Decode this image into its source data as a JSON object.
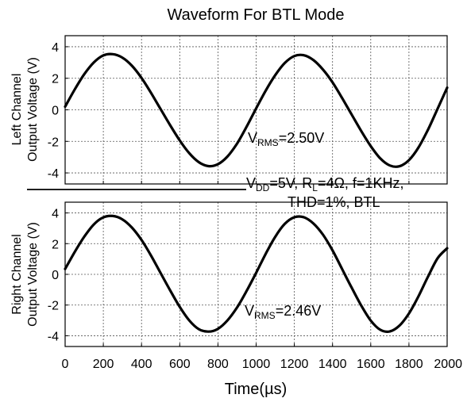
{
  "chart_data": {
    "type": "line",
    "title": "Waveform For BTL Mode",
    "xlabel": "Time(µs)",
    "xlim": [
      0,
      2000
    ],
    "x_ticks": [
      "0",
      "200",
      "400",
      "600",
      "800",
      "1000",
      "1200",
      "1400",
      "1600",
      "1800",
      "2000"
    ],
    "grid": true,
    "condition_text": {
      "line1": {
        "v": "V",
        "dd": "DD",
        "mid": "=5V, R",
        "l": "L",
        "rest": "=4Ω, f=1KHz,"
      },
      "line2": "THD=1%, BTL"
    },
    "panels": [
      {
        "ylabel_line1": "Left Channel",
        "ylabel_line2": "Output Voltage (V)",
        "ylim": [
          -4.7,
          4.7
        ],
        "y_ticks": [
          "4",
          "2",
          "0",
          "-2",
          "-4"
        ],
        "annotation": {
          "v": "V",
          "sub": "RMS",
          "value": "=2.50V"
        },
        "series": [
          {
            "x": [
              0,
              50,
              100,
              150,
              200,
              250,
              300,
              350,
              400,
              450,
              500,
              550,
              600,
              650,
              700,
              750,
              800,
              850,
              900,
              950,
              1000,
              1050,
              1100,
              1150,
              1200,
              1250,
              1300,
              1350,
              1400,
              1450,
              1500,
              1550,
              1600,
              1650,
              1700,
              1750,
              1800,
              1850,
              1900,
              1950,
              2000
            ],
            "values": [
              0.2,
              1.28,
              2.25,
              3.0,
              3.45,
              3.53,
              3.31,
              2.79,
              2.02,
              1.07,
              0.04,
              -0.98,
              -1.94,
              -2.75,
              -3.32,
              -3.57,
              -3.45,
              -2.96,
              -2.14,
              -1.07,
              0.09,
              1.21,
              2.2,
              2.97,
              3.41,
              3.46,
              3.15,
              2.55,
              1.74,
              0.75,
              -0.3,
              -1.34,
              -2.3,
              -3.08,
              -3.53,
              -3.58,
              -3.19,
              -2.39,
              -1.25,
              0.07,
              1.4
            ]
          }
        ]
      },
      {
        "ylabel_line1": "Right Channel",
        "ylabel_line2": "Output Voltage (V)",
        "ylim": [
          -4.7,
          4.7
        ],
        "y_ticks": [
          "4",
          "2",
          "0",
          "-2",
          "-4"
        ],
        "annotation": {
          "v": "V",
          "sub": "RMS",
          "value": "=2.46V"
        },
        "series": [
          {
            "x": [
              0,
              50,
              100,
              150,
              200,
              250,
              300,
              350,
              400,
              450,
              500,
              550,
              600,
              650,
              700,
              750,
              800,
              850,
              900,
              950,
              1000,
              1050,
              1100,
              1150,
              1200,
              1250,
              1300,
              1350,
              1400,
              1450,
              1500,
              1550,
              1600,
              1650,
              1700,
              1750,
              1800,
              1850,
              1900,
              1950,
              2000
            ],
            "values": [
              0.35,
              1.45,
              2.45,
              3.25,
              3.71,
              3.8,
              3.58,
              3.04,
              2.24,
              1.22,
              0.08,
              -1.05,
              -2.12,
              -3.0,
              -3.57,
              -3.73,
              -3.55,
              -3.0,
              -2.16,
              -1.08,
              0.1,
              1.33,
              2.45,
              3.29,
              3.72,
              3.72,
              3.31,
              2.58,
              1.56,
              0.35,
              -0.87,
              -2.03,
              -3.01,
              -3.61,
              -3.72,
              -3.34,
              -2.55,
              -1.43,
              -0.14,
              1.05,
              1.7
            ]
          }
        ]
      }
    ]
  }
}
